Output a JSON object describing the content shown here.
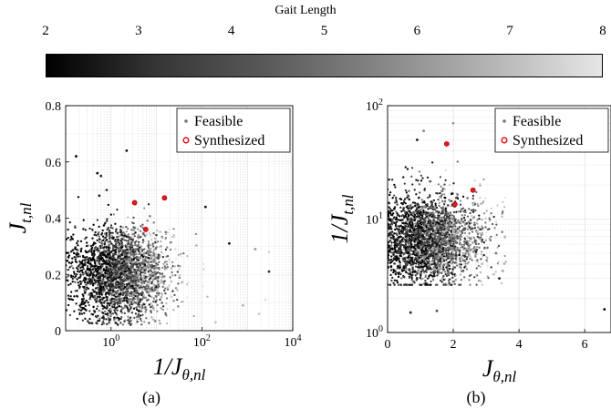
{
  "colorbar": {
    "label": "Gait Length",
    "ticks": [
      "2",
      "3",
      "4",
      "5",
      "6",
      "7",
      "8"
    ],
    "range": [
      2,
      8
    ],
    "colors": [
      "#000000",
      "#e6e6e6"
    ]
  },
  "captions": {
    "a": "(a)",
    "b": "(b)"
  },
  "chart_data": [
    {
      "type": "scatter",
      "panel": "a",
      "xlabel": "1/J_{θ,nl}",
      "ylabel": "J_{t,nl}",
      "xscale": "log",
      "xlim": [
        0.1,
        10000
      ],
      "ylim": [
        0,
        0.8
      ],
      "xticks": [
        {
          "value": 1,
          "label": "10",
          "exp": "0"
        },
        {
          "value": 100,
          "label": "10",
          "exp": "2"
        },
        {
          "value": 10000,
          "label": "10",
          "exp": "4"
        }
      ],
      "yticks": [
        "0",
        "0.2",
        "0.4",
        "0.6",
        "0.8"
      ],
      "grid": true,
      "legend": {
        "position": "top-right",
        "entries": [
          "Feasible",
          "Synthesized"
        ]
      },
      "series": [
        {
          "name": "Feasible",
          "color_by": "Gait Length",
          "cloud": {
            "x_log_center": 0.2,
            "x_log_spread": 0.55,
            "y_center": 0.2,
            "y_spread": 0.08,
            "count": 2600
          },
          "outliers": [
            {
              "x": 0.17,
              "y": 0.62,
              "g": 2.2
            },
            {
              "x": 2.2,
              "y": 0.64,
              "g": 2.5
            },
            {
              "x": 0.5,
              "y": 0.56,
              "g": 2.3
            },
            {
              "x": 0.6,
              "y": 0.55,
              "g": 3.0
            },
            {
              "x": 0.55,
              "y": 0.48,
              "g": 2.8
            },
            {
              "x": 0.8,
              "y": 0.5,
              "g": 3.5
            },
            {
              "x": 120,
              "y": 0.44,
              "g": 2.4
            },
            {
              "x": 400,
              "y": 0.31,
              "g": 2.6
            },
            {
              "x": 1500,
              "y": 0.29,
              "g": 6.0
            },
            {
              "x": 3000,
              "y": 0.28,
              "g": 7.5
            },
            {
              "x": 3000,
              "y": 0.21,
              "g": 3.5
            },
            {
              "x": 2500,
              "y": 0.11,
              "g": 7.8
            },
            {
              "x": 1800,
              "y": 0.06,
              "g": 7.2
            },
            {
              "x": 800,
              "y": 0.09,
              "g": 6.5
            },
            {
              "x": 200,
              "y": 0.03,
              "g": 7.0
            }
          ]
        },
        {
          "name": "Synthesized",
          "color": "#e41a1c",
          "points": [
            {
              "x": 3.3,
              "y": 0.455
            },
            {
              "x": 15,
              "y": 0.472
            },
            {
              "x": 5.8,
              "y": 0.36
            }
          ]
        }
      ]
    },
    {
      "type": "scatter",
      "panel": "b",
      "xlabel": "J_{θ,nl}",
      "ylabel": "1/J_{t,nl}",
      "yscale": "log",
      "xlim": [
        0,
        6.8
      ],
      "ylim": [
        1,
        100
      ],
      "xticks": [
        "0",
        "2",
        "4",
        "6"
      ],
      "yticks": [
        {
          "value": 1,
          "label": "10",
          "exp": "0"
        },
        {
          "value": 10,
          "label": "10",
          "exp": "1"
        },
        {
          "value": 100,
          "label": "10",
          "exp": "2"
        }
      ],
      "grid": true,
      "legend": {
        "position": "top-right",
        "entries": [
          "Feasible",
          "Synthesized"
        ]
      },
      "series": [
        {
          "name": "Feasible",
          "color_by": "Gait Length",
          "cloud": {
            "x_center": 1.3,
            "x_spread": 0.7,
            "y_log_center": 0.82,
            "y_log_spread": 0.2,
            "count": 2600
          },
          "outliers": [
            {
              "x": 6.6,
              "y": 1.6,
              "g": 2.3
            },
            {
              "x": 0.7,
              "y": 1.5,
              "g": 3.0
            },
            {
              "x": 1.5,
              "y": 1.55,
              "g": 4.0
            },
            {
              "x": 3.5,
              "y": 3.5,
              "g": 6.5
            },
            {
              "x": 3.4,
              "y": 3.0,
              "g": 2.8
            },
            {
              "x": 3.6,
              "y": 4.2,
              "g": 7.0
            },
            {
              "x": 3.3,
              "y": 5.0,
              "g": 5.0
            },
            {
              "x": 2.0,
              "y": 70,
              "g": 6.0
            },
            {
              "x": 1.1,
              "y": 60,
              "g": 5.5
            },
            {
              "x": 0.9,
              "y": 50,
              "g": 2.5
            }
          ]
        },
        {
          "name": "Synthesized",
          "color": "#e41a1c",
          "points": [
            {
              "x": 1.8,
              "y": 46
            },
            {
              "x": 2.05,
              "y": 13.5
            },
            {
              "x": 2.6,
              "y": 18
            }
          ]
        }
      ]
    }
  ]
}
